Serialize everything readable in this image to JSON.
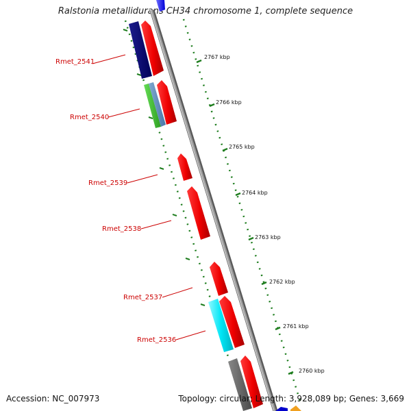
{
  "title": "Ralstonia metallidurans CH34 chromosome 1, complete sequence",
  "footer": {
    "accession": "Accession: NC_007973",
    "summary": "Topology: circular; Length: 3,928,089 bp; Genes: 3,669"
  },
  "colors": {
    "gene_label": "#cc0000",
    "tick": "#1e7d1e",
    "backbone": "#888888"
  },
  "ticks": [
    "2767 kbp",
    "2766 kbp",
    "2765 kbp",
    "2764 kbp",
    "2763 kbp",
    "2762 kbp",
    "2761 kbp",
    "2760 kbp"
  ],
  "genes": [
    "Rmet_2541",
    "Rmet_2540",
    "Rmet_2539",
    "Rmet_2538",
    "Rmet_2537",
    "Rmet_2536"
  ]
}
